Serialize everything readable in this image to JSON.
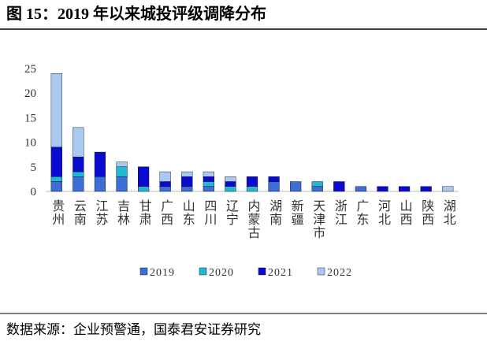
{
  "chart_data": {
    "type": "stacked_bar",
    "title": "图 15：2019 年以来城投评级调降分布",
    "source": "数据来源：企业预警通，国泰君安证券研究",
    "categories": [
      "贵州",
      "云南",
      "江苏",
      "吉林",
      "甘肃",
      "广西",
      "山东",
      "四川",
      "辽宁",
      "内蒙古",
      "湖南",
      "新疆",
      "天津市",
      "浙江",
      "广东",
      "河北",
      "山西",
      "陕西",
      "湖北"
    ],
    "series": [
      {
        "name": "2019",
        "color": "#3b6fd6",
        "values": [
          2,
          3,
          3,
          3,
          0,
          1,
          1,
          1,
          0,
          0,
          2,
          2,
          1,
          0,
          1,
          0,
          0,
          0,
          0
        ]
      },
      {
        "name": "2020",
        "color": "#22b8d4",
        "values": [
          1,
          1,
          0,
          2,
          1,
          0,
          0,
          1,
          1,
          1,
          0,
          0,
          1,
          0,
          0,
          0,
          0,
          0,
          0
        ]
      },
      {
        "name": "2021",
        "color": "#0a0ad0",
        "values": [
          6,
          3,
          5,
          0,
          4,
          1,
          2,
          1,
          1,
          2,
          1,
          0,
          0,
          2,
          0,
          1,
          1,
          1,
          0
        ]
      },
      {
        "name": "2022",
        "color": "#a9c9f2",
        "values": [
          15,
          6,
          0,
          1,
          0,
          2,
          1,
          1,
          1,
          0,
          0,
          0,
          0,
          0,
          0,
          0,
          0,
          0,
          1
        ]
      }
    ],
    "ylim": [
      0,
      25
    ],
    "yticks": [
      0,
      5,
      10,
      15,
      20,
      25
    ],
    "grid": false
  }
}
